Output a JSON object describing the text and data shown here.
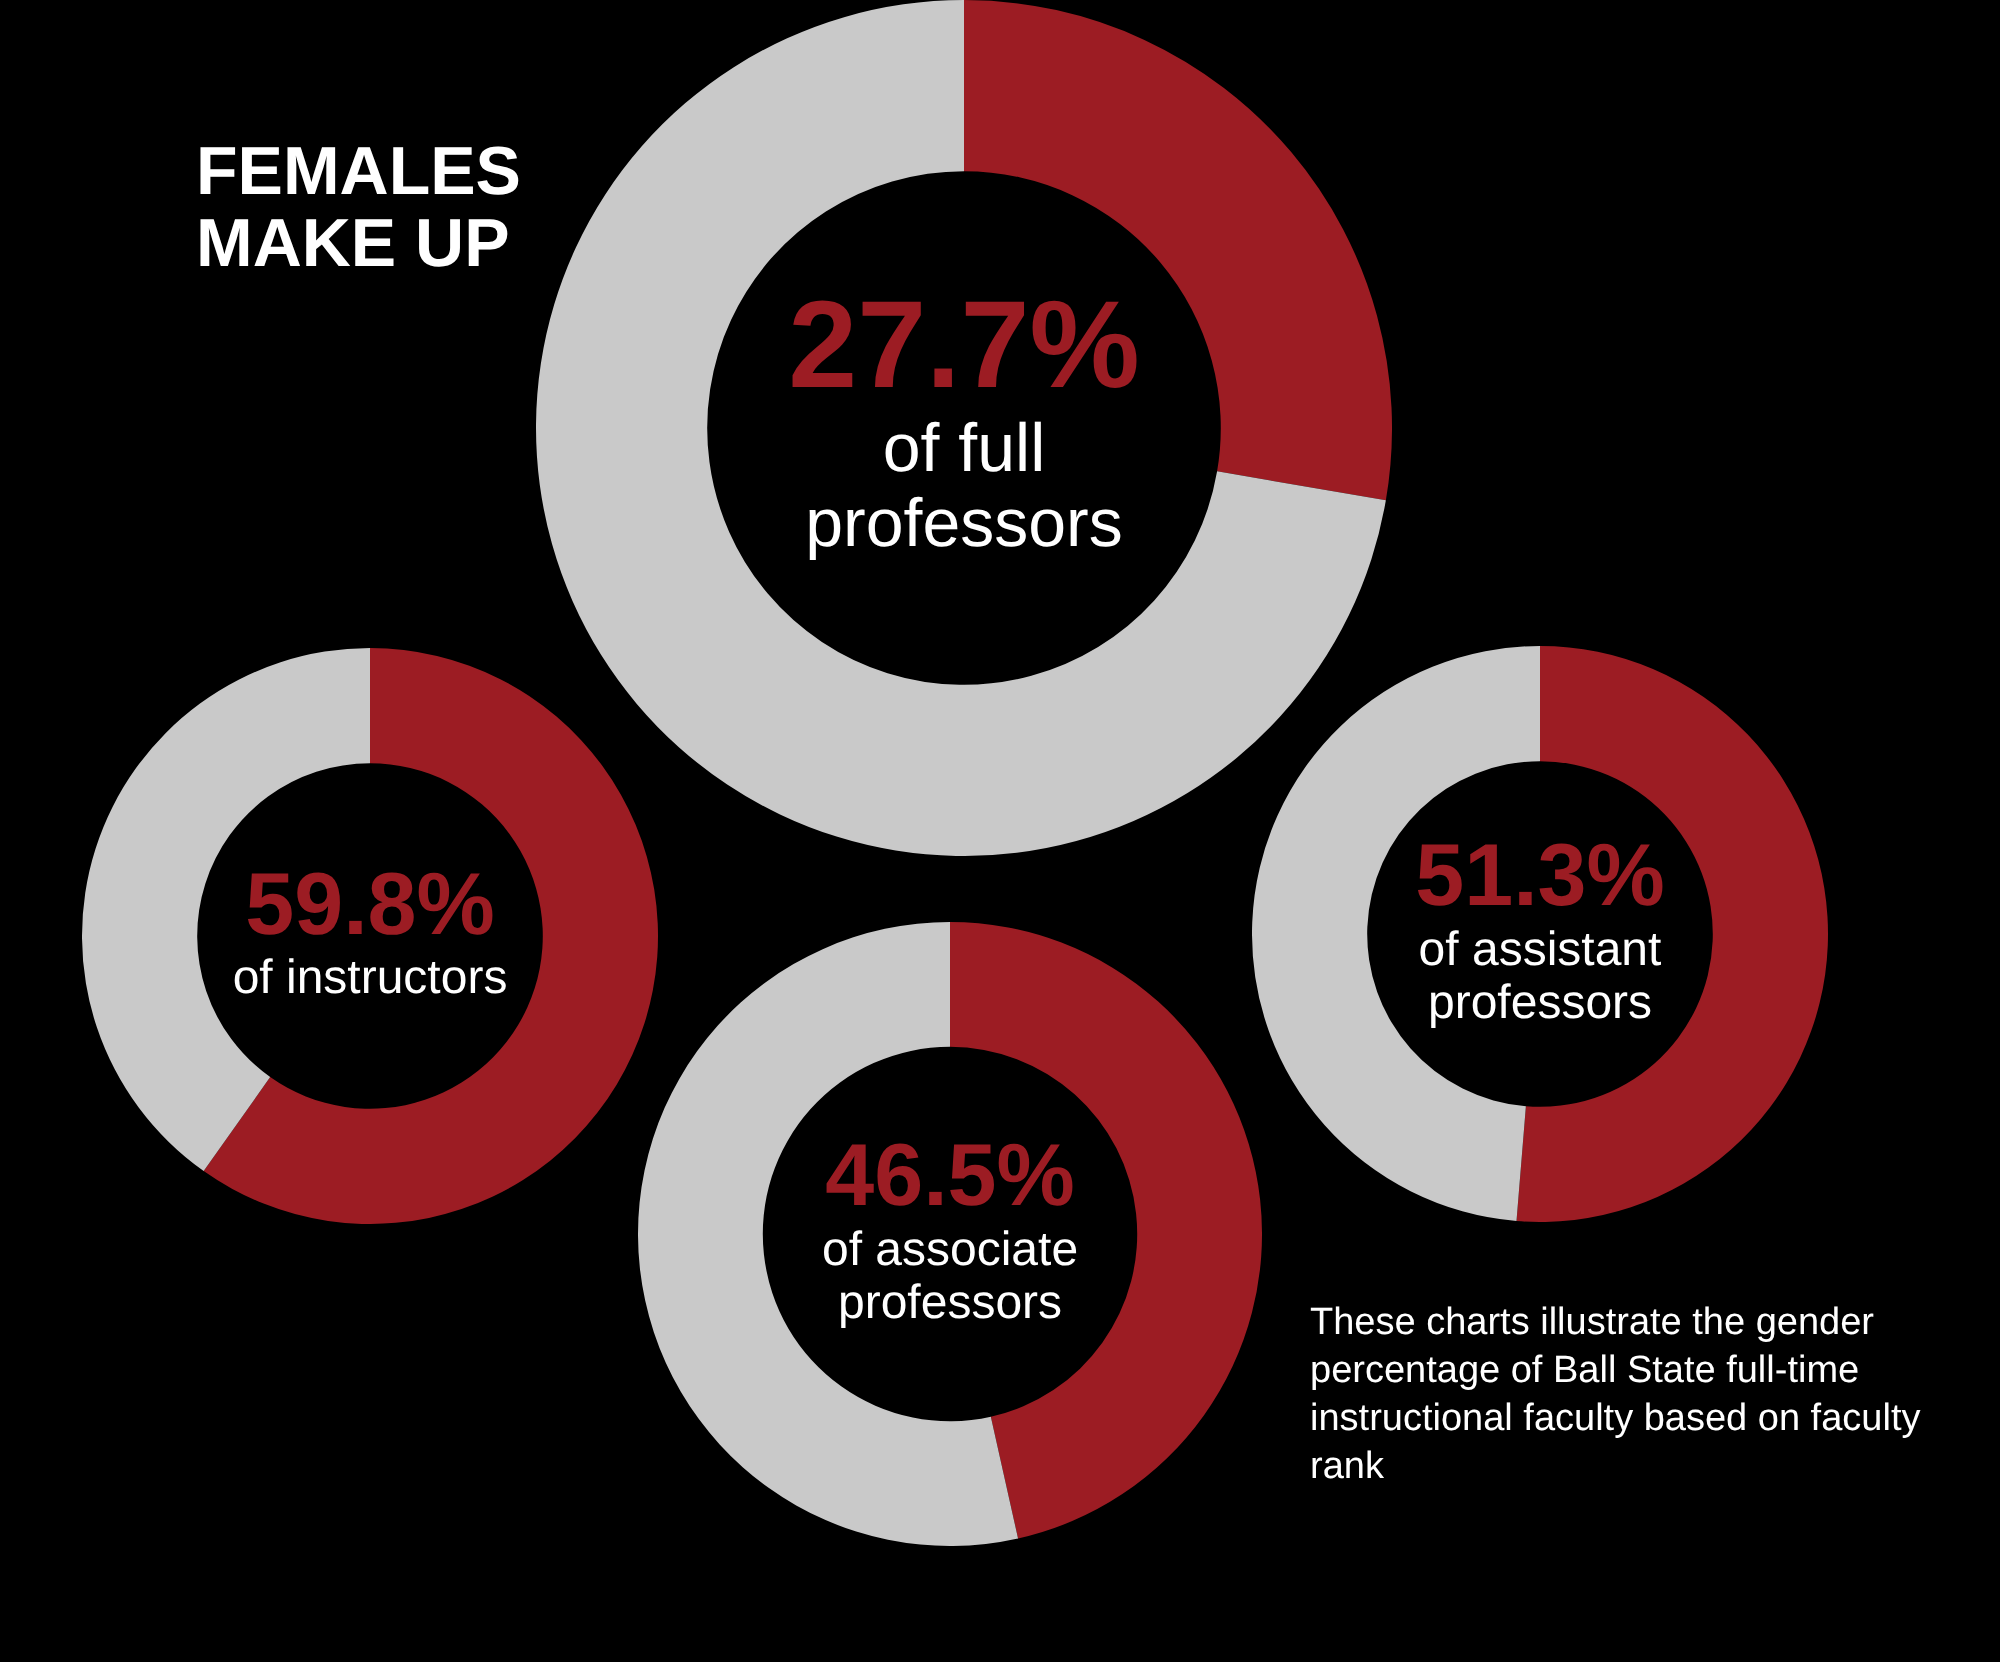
{
  "chart_data": [
    {
      "type": "donut",
      "title": "FEMALES MAKE UP",
      "subtitle": "of full professors",
      "categories": [
        null,
        null
      ],
      "values": [
        27.7,
        72.3
      ],
      "colors": [
        "#9c1c23",
        "#c9c9c9"
      ],
      "value_labels": [
        "27.7%",
        null
      ],
      "legend": false
    },
    {
      "type": "donut",
      "subtitle": "of instructors",
      "categories": [
        null,
        null
      ],
      "values": [
        59.8,
        40.2
      ],
      "colors": [
        "#9c1c23",
        "#c9c9c9"
      ],
      "value_labels": [
        "59.8%",
        null
      ],
      "legend": false
    },
    {
      "type": "donut",
      "subtitle": "of assistant professors",
      "categories": [
        null,
        null
      ],
      "values": [
        51.3,
        48.7
      ],
      "colors": [
        "#9c1c23",
        "#c9c9c9"
      ],
      "value_labels": [
        "51.3%",
        null
      ],
      "legend": false
    },
    {
      "type": "donut",
      "subtitle": "of associate professors",
      "categories": [
        null,
        null
      ],
      "values": [
        46.5,
        53.5
      ],
      "colors": [
        "#9c1c23",
        "#c9c9c9"
      ],
      "value_labels": [
        "46.5%",
        null
      ],
      "legend": false,
      "annotations": [
        "These charts illustrate the gender percentage of Ball State full-time instructional faculty based on faculty rank"
      ]
    }
  ]
}
